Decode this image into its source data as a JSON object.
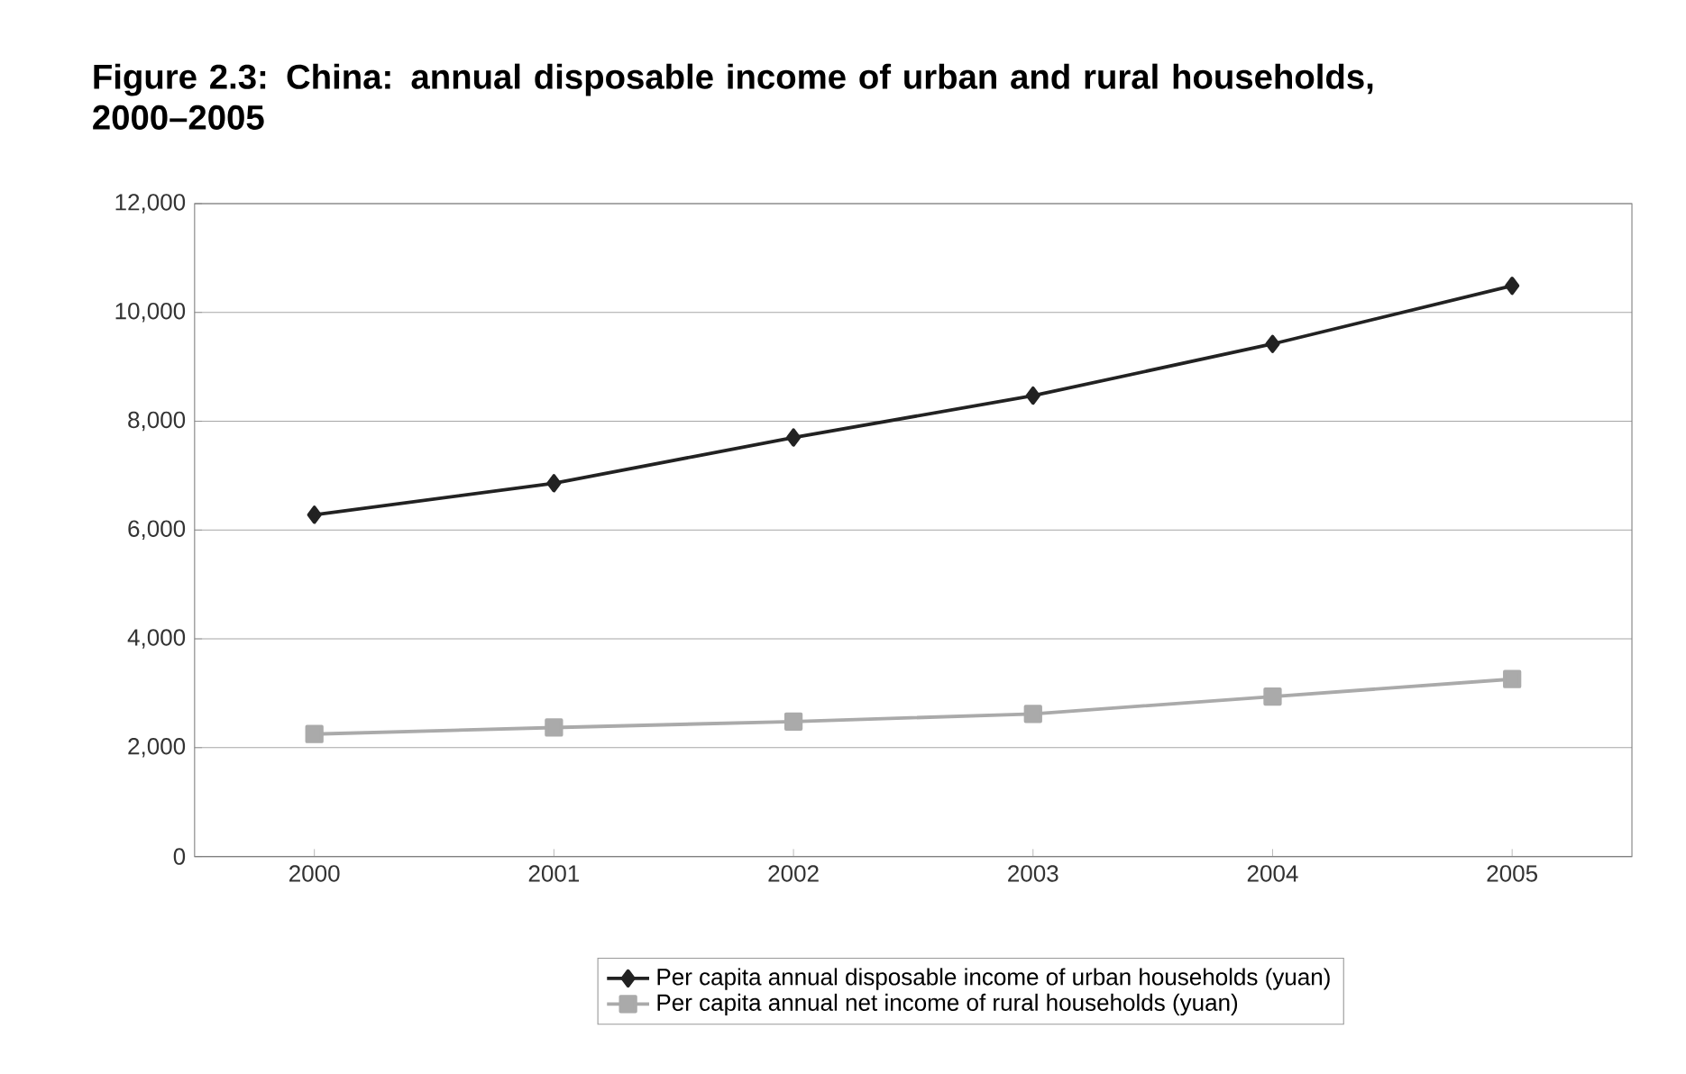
{
  "chart_data": {
    "type": "line",
    "title": "Figure 2.3: China: annual disposable income of urban and rural households, 2000–2005",
    "categories": [
      "2000",
      "2001",
      "2002",
      "2003",
      "2004",
      "2005"
    ],
    "series": [
      {
        "name": "Per capita annual disposable income of urban households (yuan)",
        "color": "#222222",
        "marker": "diamond",
        "values": [
          6280,
          6860,
          7700,
          8470,
          9420,
          10490
        ]
      },
      {
        "name": "Per capita annual net income of rural households (yuan)",
        "color": "#aaaaaa",
        "marker": "square",
        "values": [
          2250,
          2370,
          2480,
          2620,
          2940,
          3260
        ]
      }
    ],
    "ylim": [
      0,
      12000
    ],
    "yticks": [
      {
        "value": 0,
        "label": "0"
      },
      {
        "value": 2000,
        "label": "2,000"
      },
      {
        "value": 4000,
        "label": "4,000"
      },
      {
        "value": 6000,
        "label": "6,000"
      },
      {
        "value": 8000,
        "label": "8,000"
      },
      {
        "value": 10000,
        "label": "10,000"
      },
      {
        "value": 12000,
        "label": "12,000"
      }
    ],
    "grid": "y",
    "legend": "bottom"
  }
}
